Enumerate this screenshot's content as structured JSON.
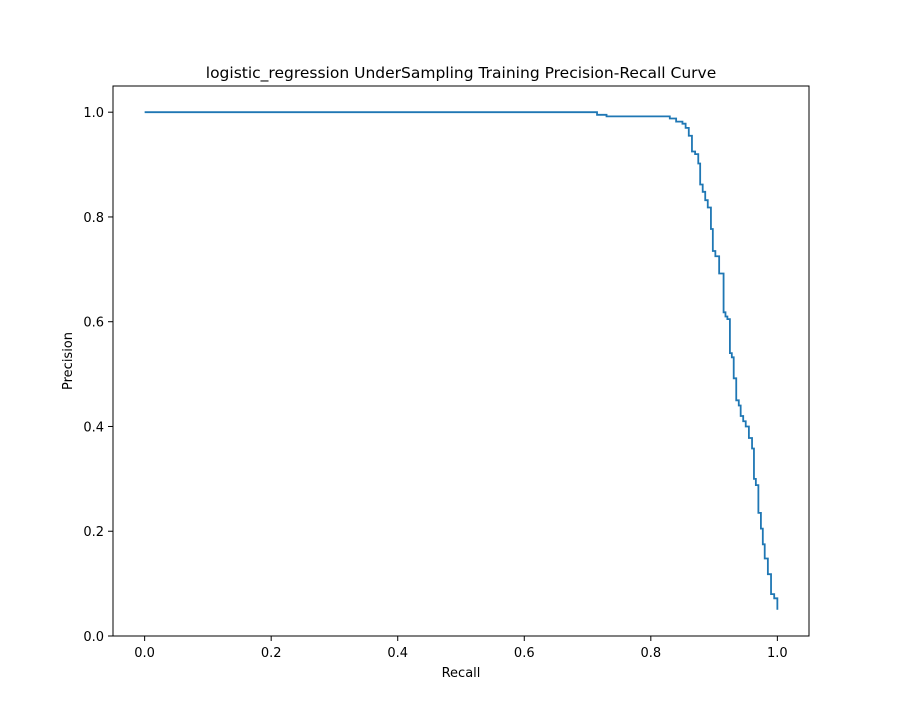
{
  "chart_data": {
    "type": "line",
    "title": "logistic_regression UnderSampling Training Precision-Recall Curve",
    "xlabel": "Recall",
    "ylabel": "Precision",
    "xlim": [
      -0.05,
      1.05
    ],
    "ylim": [
      0.0,
      1.05
    ],
    "xticks": [
      0.0,
      0.2,
      0.4,
      0.6,
      0.8,
      1.0
    ],
    "xtick_labels": [
      "0.0",
      "0.2",
      "0.4",
      "0.6",
      "0.8",
      "1.0"
    ],
    "yticks": [
      0.0,
      0.2,
      0.4,
      0.6,
      0.8,
      1.0
    ],
    "ytick_labels": [
      "0.0",
      "0.2",
      "0.4",
      "0.6",
      "0.8",
      "1.0"
    ],
    "grid": false,
    "line_color": "#1f77b4",
    "step": true,
    "series": [
      {
        "x": [
          0.0,
          0.715,
          0.715,
          0.73,
          0.73,
          0.83,
          0.83,
          0.84,
          0.84,
          0.85,
          0.85,
          0.855,
          0.855,
          0.86,
          0.86,
          0.865,
          0.865,
          0.87,
          0.87,
          0.875,
          0.875,
          0.878,
          0.878,
          0.882,
          0.882,
          0.886,
          0.886,
          0.89,
          0.89,
          0.895,
          0.895,
          0.898,
          0.898,
          0.902,
          0.902,
          0.908,
          0.908,
          0.915,
          0.915,
          0.918,
          0.918,
          0.921,
          0.921,
          0.925,
          0.925,
          0.928,
          0.928,
          0.931,
          0.931,
          0.935,
          0.935,
          0.939,
          0.939,
          0.942,
          0.942,
          0.946,
          0.946,
          0.95,
          0.95,
          0.955,
          0.955,
          0.96,
          0.96,
          0.963,
          0.963,
          0.966,
          0.966,
          0.97,
          0.97,
          0.974,
          0.974,
          0.977,
          0.977,
          0.98,
          0.98,
          0.985,
          0.985,
          0.99,
          0.99,
          0.995,
          0.995,
          1.0,
          1.0
        ],
        "y": [
          1.0,
          1.0,
          0.995,
          0.995,
          0.992,
          0.992,
          0.988,
          0.988,
          0.982,
          0.982,
          0.978,
          0.978,
          0.97,
          0.97,
          0.955,
          0.955,
          0.925,
          0.925,
          0.92,
          0.92,
          0.902,
          0.902,
          0.862,
          0.862,
          0.848,
          0.848,
          0.832,
          0.832,
          0.818,
          0.818,
          0.777,
          0.777,
          0.735,
          0.735,
          0.725,
          0.725,
          0.692,
          0.692,
          0.618,
          0.618,
          0.61,
          0.61,
          0.605,
          0.605,
          0.54,
          0.54,
          0.532,
          0.532,
          0.492,
          0.492,
          0.45,
          0.45,
          0.44,
          0.44,
          0.42,
          0.42,
          0.41,
          0.41,
          0.4,
          0.4,
          0.378,
          0.378,
          0.358,
          0.358,
          0.3,
          0.3,
          0.288,
          0.288,
          0.235,
          0.235,
          0.205,
          0.205,
          0.175,
          0.175,
          0.148,
          0.148,
          0.118,
          0.118,
          0.08,
          0.08,
          0.072,
          0.072,
          0.05
        ]
      }
    ]
  }
}
